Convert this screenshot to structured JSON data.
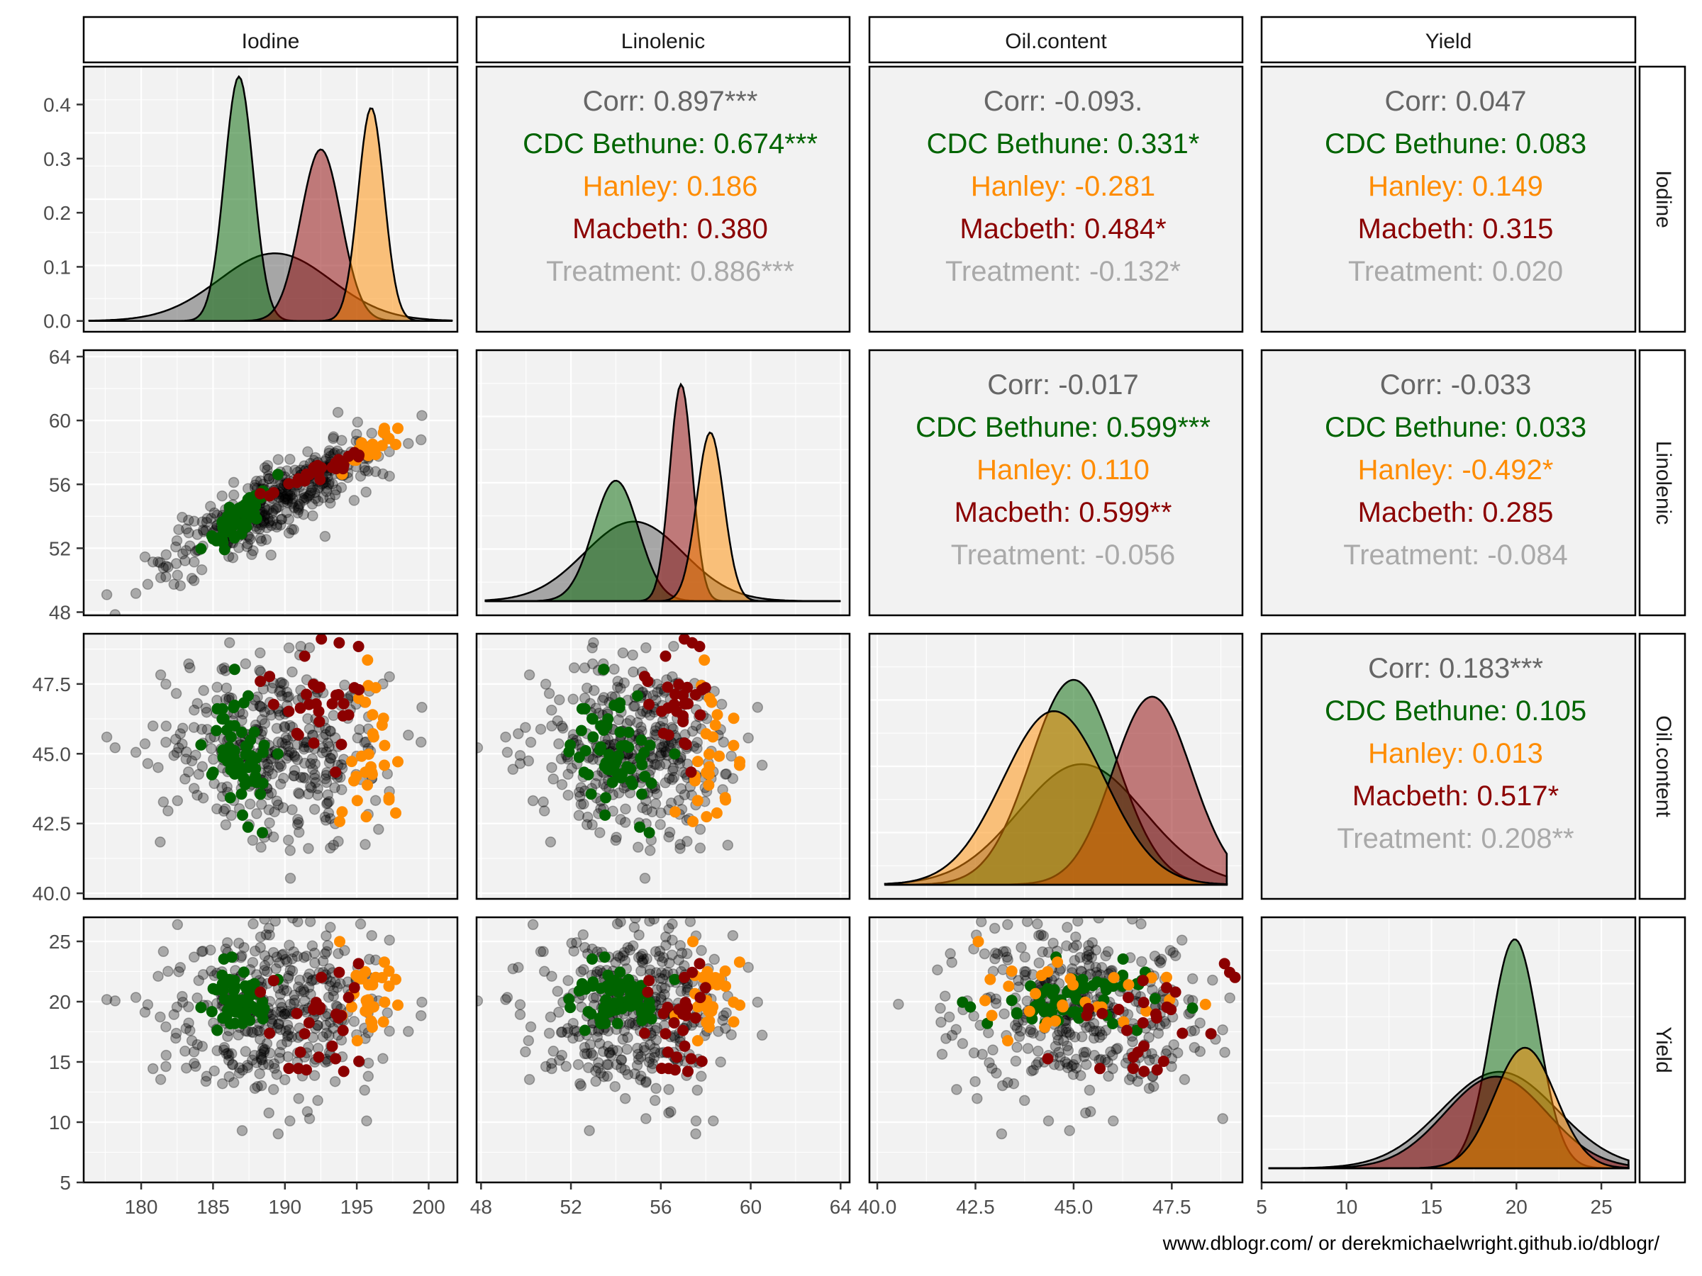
{
  "variables": [
    "Iodine",
    "Linolenic",
    "Oil.content",
    "Yield"
  ],
  "colors": {
    "all": "#000000",
    "CDC Bethune": "#006400",
    "Hanley": "#ff8c00",
    "Macbeth": "#8b0000",
    "corr_text": "#666666",
    "treatment_text": "#a9a9a9",
    "panel_bg": "#f2f2f2",
    "grid": "#ffffff"
  },
  "caption": "www.dblogr.com/ or derekmichaelwright.github.io/dblogr/",
  "chart_data": {
    "type": "scatter",
    "title": "",
    "layout": "pairs plot (4 x 4 matrix): densities on diagonal, scatter below, correlations above",
    "groups": [
      "CDC Bethune",
      "Hanley",
      "Macbeth",
      "all (grey)"
    ],
    "axes": {
      "Iodine": {
        "range": [
          176,
          202
        ],
        "ticks": [
          180,
          185,
          190,
          195,
          200
        ],
        "density_ticks": [
          0.0,
          0.1,
          0.2,
          0.3,
          0.4
        ],
        "density_range": [
          -0.02,
          0.47
        ]
      },
      "Linolenic": {
        "range": [
          47.8,
          64.4
        ],
        "ticks": [
          48,
          52,
          56,
          60,
          64
        ]
      },
      "Oil.content": {
        "range": [
          39.8,
          49.3
        ],
        "ticks": [
          40.0,
          42.5,
          45.0,
          47.5
        ]
      },
      "Yield": {
        "range": [
          5,
          27
        ],
        "ticks": [
          5,
          10,
          15,
          20,
          25
        ]
      }
    },
    "group_stats": {
      "CDC Bethune": {
        "Iodine": [
          186.8,
          1.0
        ],
        "Linolenic": [
          54.0,
          1.0
        ],
        "Oil.content": [
          45.0,
          1.1
        ],
        "Yield": [
          19.9,
          1.4
        ]
      },
      "Hanley": {
        "Iodine": [
          196.0,
          0.9
        ],
        "Linolenic": [
          58.2,
          0.6
        ],
        "Oil.content": [
          44.5,
          1.3
        ],
        "Yield": [
          20.5,
          1.8
        ]
      },
      "Macbeth": {
        "Iodine": [
          192.5,
          1.4
        ],
        "Linolenic": [
          56.9,
          0.5
        ],
        "Oil.content": [
          47.0,
          1.0
        ],
        "Yield": [
          18.8,
          3.0
        ]
      },
      "all": {
        "Iodine": [
          189.3,
          3.9
        ],
        "Linolenic": [
          54.8,
          2.2
        ],
        "Oil.content": [
          45.2,
          1.6
        ],
        "Yield": [
          19.0,
          3.4
        ]
      }
    },
    "density_peaks": {
      "Iodine": {
        "CDC Bethune": 0.47,
        "Hanley": 0.41,
        "Macbeth": 0.33,
        "all": 0.13
      },
      "Linolenic": {
        "CDC Bethune": 0.5,
        "Hanley": 0.7,
        "Macbeth": 0.9,
        "all": 0.33
      },
      "Oil.content": {
        "CDC Bethune": 0.85,
        "Hanley": 0.72,
        "Macbeth": 0.78,
        "all": 0.5
      },
      "Yield": {
        "CDC Bethune": 0.95,
        "Hanley": 0.5,
        "Macbeth": 0.38,
        "all": 0.4
      }
    },
    "correlations": [
      {
        "row": "Iodine",
        "col": "Linolenic",
        "lines": [
          {
            "key": "corr",
            "text": "Corr: 0.897***"
          },
          {
            "key": "CDC Bethune",
            "text": "CDC Bethune: 0.674***"
          },
          {
            "key": "Hanley",
            "text": "Hanley: 0.186"
          },
          {
            "key": "Macbeth",
            "text": "Macbeth: 0.380"
          },
          {
            "key": "treatment",
            "text": "Treatment: 0.886***"
          }
        ]
      },
      {
        "row": "Iodine",
        "col": "Oil.content",
        "lines": [
          {
            "key": "corr",
            "text": "Corr: -0.093."
          },
          {
            "key": "CDC Bethune",
            "text": "CDC Bethune: 0.331*"
          },
          {
            "key": "Hanley",
            "text": "Hanley: -0.281"
          },
          {
            "key": "Macbeth",
            "text": "Macbeth: 0.484*"
          },
          {
            "key": "treatment",
            "text": "Treatment: -0.132*"
          }
        ]
      },
      {
        "row": "Iodine",
        "col": "Yield",
        "lines": [
          {
            "key": "corr",
            "text": "Corr: 0.047"
          },
          {
            "key": "CDC Bethune",
            "text": "CDC Bethune: 0.083"
          },
          {
            "key": "Hanley",
            "text": "Hanley: 0.149"
          },
          {
            "key": "Macbeth",
            "text": "Macbeth: 0.315"
          },
          {
            "key": "treatment",
            "text": "Treatment: 0.020"
          }
        ]
      },
      {
        "row": "Linolenic",
        "col": "Oil.content",
        "lines": [
          {
            "key": "corr",
            "text": "Corr: -0.017"
          },
          {
            "key": "CDC Bethune",
            "text": "CDC Bethune: 0.599***"
          },
          {
            "key": "Hanley",
            "text": "Hanley: 0.110"
          },
          {
            "key": "Macbeth",
            "text": "Macbeth: 0.599**"
          },
          {
            "key": "treatment",
            "text": "Treatment: -0.056"
          }
        ]
      },
      {
        "row": "Linolenic",
        "col": "Yield",
        "lines": [
          {
            "key": "corr",
            "text": "Corr: -0.033"
          },
          {
            "key": "CDC Bethune",
            "text": "CDC Bethune: 0.033"
          },
          {
            "key": "Hanley",
            "text": "Hanley: -0.492*"
          },
          {
            "key": "Macbeth",
            "text": "Macbeth: 0.285"
          },
          {
            "key": "treatment",
            "text": "Treatment: -0.084"
          }
        ]
      },
      {
        "row": "Oil.content",
        "col": "Yield",
        "lines": [
          {
            "key": "corr",
            "text": "Corr: 0.183***"
          },
          {
            "key": "CDC Bethune",
            "text": "CDC Bethune: 0.105"
          },
          {
            "key": "Hanley",
            "text": "Hanley: 0.013"
          },
          {
            "key": "Macbeth",
            "text": "Macbeth: 0.517*"
          },
          {
            "key": "treatment",
            "text": "Treatment: 0.208**"
          }
        ]
      }
    ]
  }
}
